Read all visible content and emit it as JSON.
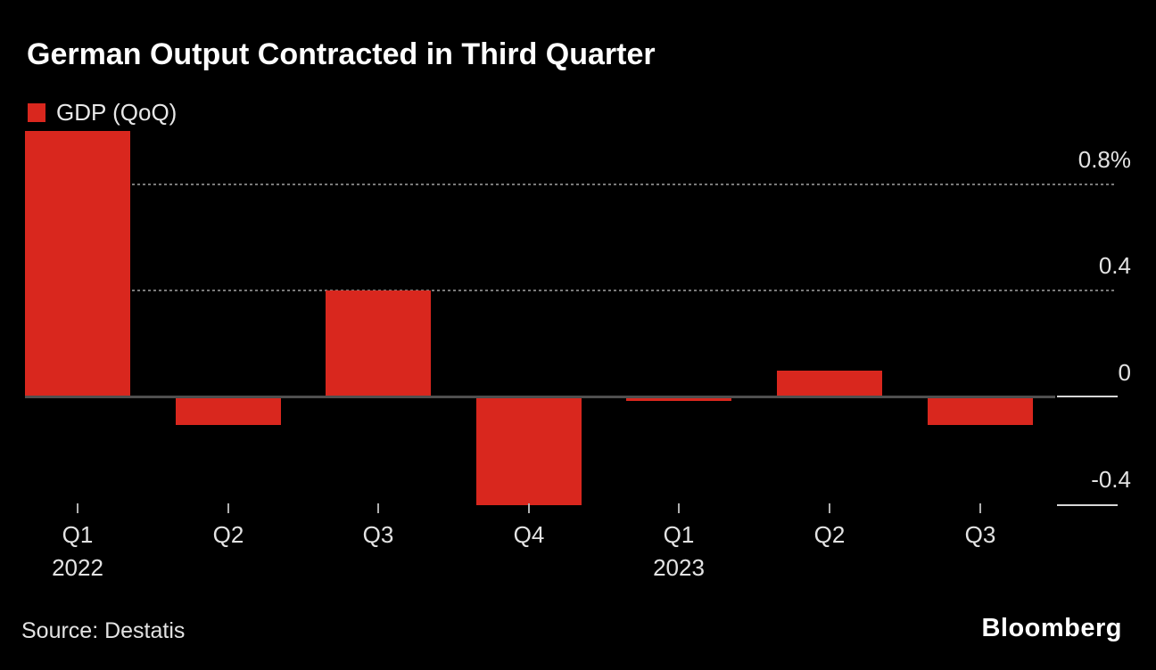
{
  "title": "German Output Contracted in Third Quarter",
  "legend": {
    "label": "GDP (QoQ)"
  },
  "source": "Source: Destatis",
  "brand": "Bloomberg",
  "colors": {
    "background": "#000000",
    "bar_red": "#d9271e",
    "gridline_gray": "#7a7a7a",
    "zero_line_gray": "#4f4f4f",
    "axis_segment_white": "#d7d7d7",
    "text_white": "#ffffff",
    "axis_text": "#e3e3e3"
  },
  "y_axis": {
    "labels": [
      "0.8%",
      "0.4",
      "0",
      "-0.4"
    ],
    "values": [
      0.8,
      0.4,
      0,
      -0.4
    ],
    "dashed_gridline_values": [
      0.8,
      0.4
    ],
    "short_segment_values": [
      0,
      -0.4
    ]
  },
  "chart_data": {
    "type": "bar",
    "title": "German Output Contracted in Third Quarter",
    "series_name": "GDP (QoQ)",
    "categories": [
      "Q1 2022",
      "Q2 2022",
      "Q3 2022",
      "Q4 2022",
      "Q1 2023",
      "Q2 2023",
      "Q3 2023"
    ],
    "x_tick_labels": [
      {
        "quarter": "Q1",
        "year": "2022"
      },
      {
        "quarter": "Q2"
      },
      {
        "quarter": "Q3"
      },
      {
        "quarter": "Q4"
      },
      {
        "quarter": "Q1",
        "year": "2023"
      },
      {
        "quarter": "Q2"
      },
      {
        "quarter": "Q3"
      }
    ],
    "values": [
      1.0,
      -0.1,
      0.4,
      -0.4,
      0.0,
      0.1,
      -0.1
    ],
    "unit": "%",
    "ylim": [
      -0.55,
      1.05
    ],
    "legend_position": "top-left",
    "grid": "dashed horizontal at 0.4 and 0.8",
    "source": "Destatis"
  }
}
